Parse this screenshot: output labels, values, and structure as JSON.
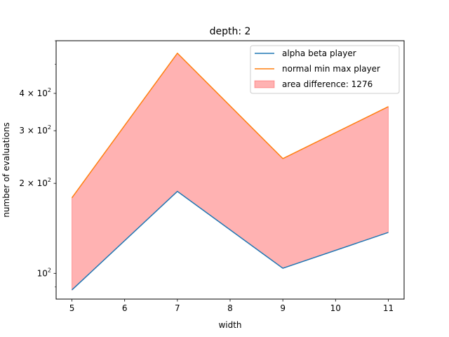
{
  "chart_data": {
    "type": "line",
    "title": "depth: 2",
    "xlabel": "width",
    "ylabel": "number of evaluations",
    "yscale": "log",
    "xlim": [
      4.7,
      11.3
    ],
    "ylim": [
      82,
      600
    ],
    "grid": false,
    "legend_position": "top-right",
    "x_ticks": [
      5,
      6,
      7,
      8,
      9,
      10,
      11
    ],
    "y_ticks": [
      {
        "value": 100,
        "base": "10",
        "exp": "2",
        "coef": ""
      },
      {
        "value": 200,
        "base": "10",
        "exp": "2",
        "coef": "2 × "
      },
      {
        "value": 300,
        "base": "10",
        "exp": "2",
        "coef": "3 × "
      },
      {
        "value": 400,
        "base": "10",
        "exp": "2",
        "coef": "4 × "
      }
    ],
    "x": [
      5,
      7,
      9,
      11
    ],
    "series": [
      {
        "name": "alpha beta player",
        "color": "#1f77b4",
        "values": [
          88,
          188,
          104,
          137
        ]
      },
      {
        "name": "normal min max player",
        "color": "#ff7f0e",
        "values": [
          179,
          545,
          242,
          361
        ]
      }
    ],
    "fill": {
      "name": "area difference: 1276",
      "color": "#ff0000",
      "alpha": 0.3
    }
  }
}
